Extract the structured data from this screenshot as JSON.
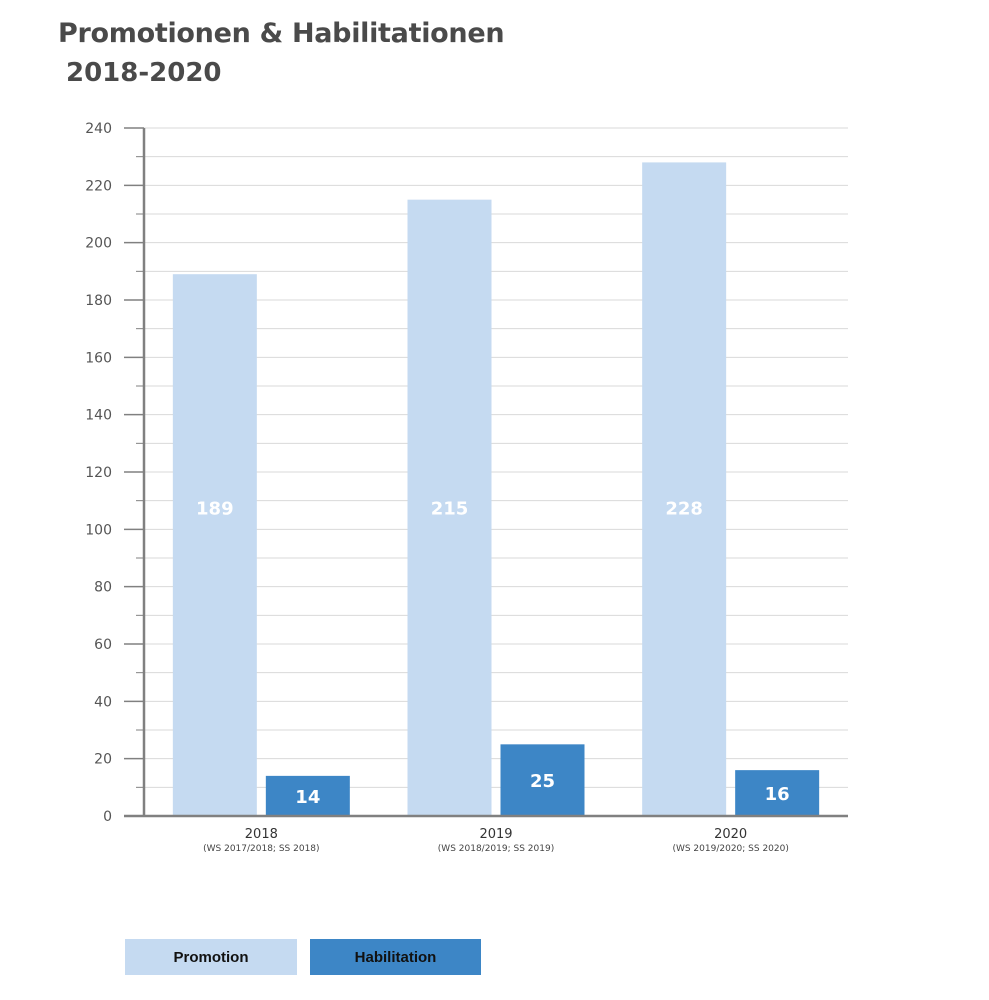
{
  "chart_data": {
    "type": "bar",
    "title": "Promotionen & Habilitationen",
    "subtitle": "2018-2020",
    "categories": [
      "2018",
      "2019",
      "2020"
    ],
    "category_sublabels": [
      "(WS 2017/2018; SS 2018)",
      "(WS 2018/2019; SS 2019)",
      "(WS 2019/2020; SS 2020)"
    ],
    "series": [
      {
        "name": "Promotion",
        "values": [
          189,
          215,
          228
        ],
        "color": "#c5daf1"
      },
      {
        "name": "Habilitation",
        "values": [
          14,
          25,
          16
        ],
        "color": "#3d86c6"
      }
    ],
    "ylim": [
      0,
      240
    ],
    "yticks": [
      0,
      20,
      40,
      60,
      80,
      100,
      120,
      140,
      160,
      180,
      200,
      220,
      240
    ],
    "grid": true,
    "legend_position": "bottom-left",
    "axis_color": "#808080",
    "grid_color": "#d9d9d9"
  }
}
